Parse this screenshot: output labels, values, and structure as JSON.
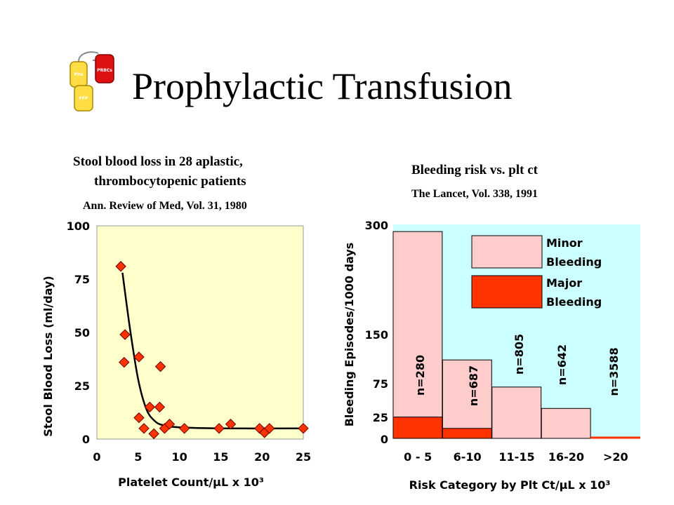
{
  "slide": {
    "title": "Prophylactic Transfusion",
    "logo": {
      "icon": "blood-bags-icon",
      "labels": [
        "PRBCs",
        "Plts",
        "FFP"
      ]
    }
  },
  "left": {
    "caption_line1": "Stool blood loss in 28 aplastic,",
    "caption_line2": "thrombocytopenic patients",
    "source": "Ann. Review of Med, Vol. 31, 1980"
  },
  "right": {
    "caption": "Bleeding risk vs. plt ct",
    "source": "The Lancet, Vol. 338, 1991"
  },
  "chart_data": [
    {
      "type": "scatter",
      "xlabel": "Platelet Count/μL x 10³",
      "ylabel": "Stool Blood Loss (ml/day)",
      "xlim": [
        0,
        25
      ],
      "ylim": [
        0,
        100
      ],
      "xticks": [
        0,
        5,
        10,
        15,
        20,
        25
      ],
      "yticks": [
        0,
        25,
        50,
        75,
        100
      ],
      "background": "#ffffcc",
      "marker_color": "#ff3300",
      "points": [
        {
          "x": 2.9,
          "y": 81
        },
        {
          "x": 3.4,
          "y": 49
        },
        {
          "x": 3.3,
          "y": 36
        },
        {
          "x": 5.1,
          "y": 38.5
        },
        {
          "x": 7.7,
          "y": 34
        },
        {
          "x": 5.1,
          "y": 10
        },
        {
          "x": 5.7,
          "y": 5
        },
        {
          "x": 6.4,
          "y": 15
        },
        {
          "x": 6.9,
          "y": 2.5
        },
        {
          "x": 7.6,
          "y": 15
        },
        {
          "x": 8.2,
          "y": 5
        },
        {
          "x": 8.8,
          "y": 7
        },
        {
          "x": 10.6,
          "y": 5
        },
        {
          "x": 14.8,
          "y": 5
        },
        {
          "x": 16.2,
          "y": 7
        },
        {
          "x": 19.7,
          "y": 5
        },
        {
          "x": 20.3,
          "y": 3
        },
        {
          "x": 20.9,
          "y": 5
        },
        {
          "x": 25,
          "y": 5
        }
      ],
      "curve": [
        {
          "x": 3.1,
          "y": 78
        },
        {
          "x": 4,
          "y": 52
        },
        {
          "x": 5,
          "y": 28
        },
        {
          "x": 6,
          "y": 14
        },
        {
          "x": 7,
          "y": 8.5
        },
        {
          "x": 8,
          "y": 6.5
        },
        {
          "x": 10,
          "y": 5.5
        },
        {
          "x": 15,
          "y": 5
        },
        {
          "x": 25,
          "y": 5
        }
      ]
    },
    {
      "type": "bar",
      "xlabel": "Risk Category by Plt Ct/μL x 10³",
      "ylabel": "Bleeding Episodes/1000 days",
      "categories": [
        "0 - 5",
        "6-10",
        "11-15",
        "16-20",
        ">20"
      ],
      "ylim": [
        0,
        300
      ],
      "yticks": [
        0,
        25,
        75,
        150,
        300
      ],
      "background": "#ccffff",
      "series": [
        {
          "name": "Minor Bleeding",
          "color": "#ffcccc",
          "values": [
            290,
            110,
            72,
            42,
            0
          ]
        },
        {
          "name": "Major Bleeding",
          "color": "#ff3300",
          "values": [
            30,
            14,
            0,
            0,
            2
          ]
        }
      ],
      "bar_labels": [
        "n=280",
        "n=687",
        "n=805",
        "n=642",
        "n=3588"
      ],
      "legend": [
        "Minor",
        "Bleeding",
        "Major",
        "Bleeding"
      ],
      "legend_position": "top-right"
    }
  ]
}
